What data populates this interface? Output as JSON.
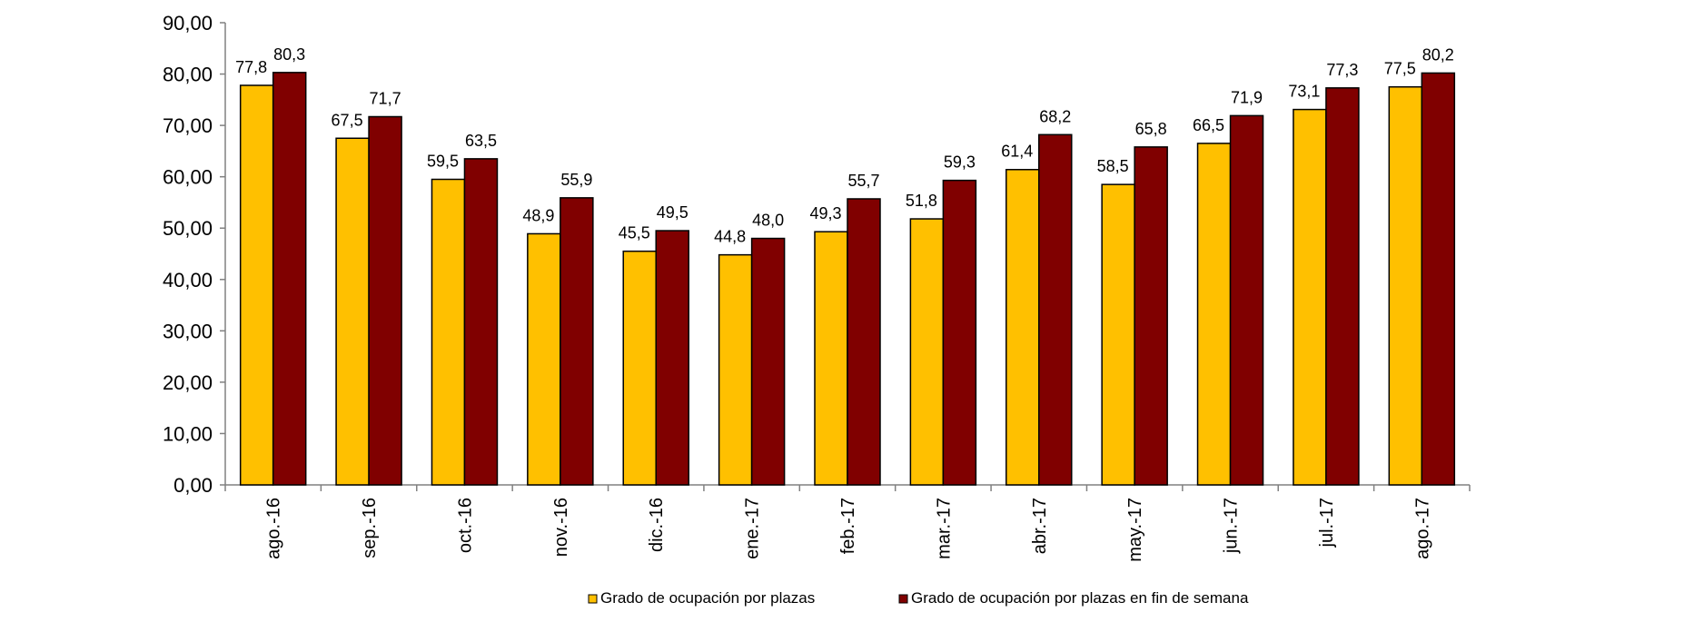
{
  "chart_data": {
    "type": "bar",
    "categories": [
      "ago.-16",
      "sep.-16",
      "oct.-16",
      "nov.-16",
      "dic.-16",
      "ene.-17",
      "feb.-17",
      "mar.-17",
      "abr.-17",
      "may.-17",
      "jun.-17",
      "jul.-17",
      "ago.-17"
    ],
    "series": [
      {
        "name": "Grado de ocupación por plazas",
        "color": "#FFC000",
        "values": [
          77.8,
          67.5,
          59.5,
          48.9,
          45.5,
          44.8,
          49.3,
          51.8,
          61.4,
          58.5,
          66.5,
          73.1,
          77.5
        ],
        "labels": [
          "77,8",
          "67,5",
          "59,5",
          "48,9",
          "45,5",
          "44,8",
          "49,3",
          "51,8",
          "61,4",
          "58,5",
          "66,5",
          "73,1",
          "77,5"
        ]
      },
      {
        "name": "Grado de ocupación por plazas en fin de semana",
        "color": "#800000",
        "values": [
          80.3,
          71.7,
          63.5,
          55.9,
          49.5,
          48.0,
          55.7,
          59.3,
          68.2,
          65.8,
          71.9,
          77.3,
          80.2
        ],
        "labels": [
          "80,3",
          "71,7",
          "63,5",
          "55,9",
          "49,5",
          "48,0",
          "55,7",
          "59,3",
          "68,2",
          "65,8",
          "71,9",
          "77,3",
          "80,2"
        ]
      }
    ],
    "yticks": [
      "0,00",
      "10,00",
      "20,00",
      "30,00",
      "40,00",
      "50,00",
      "60,00",
      "70,00",
      "80,00",
      "90,00"
    ],
    "ylim": [
      0,
      90
    ],
    "grid": false,
    "legend_position": "bottom"
  }
}
